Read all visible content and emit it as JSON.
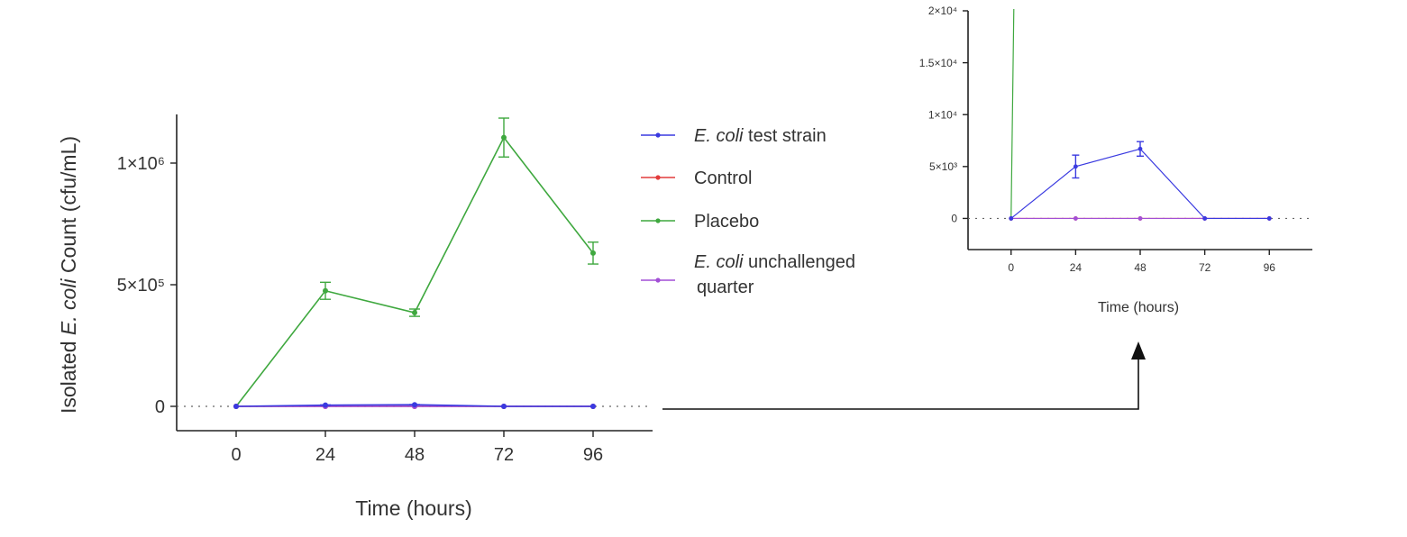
{
  "chart_data": [
    {
      "type": "line",
      "panel": "main",
      "x": [
        0,
        24,
        48,
        72,
        96
      ],
      "xticks": [
        "0",
        "24",
        "48",
        "72",
        "96"
      ],
      "xlabel": "Time (hours)",
      "ylabel_parts": [
        "Isolated ",
        "E. coli",
        " Count (cfu/mL)"
      ],
      "yticks": [
        {
          "v": 0,
          "label": "0"
        },
        {
          "v": 500000,
          "label": "5×10⁵"
        },
        {
          "v": 1000000,
          "label": "1×10⁶"
        }
      ],
      "ylim": [
        -100000,
        1200000
      ],
      "xlim": [
        -16,
        112
      ],
      "zero_line": true,
      "series": [
        {
          "name_italic": "E. coli",
          "name_rest": " test strain",
          "color": "#3a3ae0",
          "values": [
            0,
            5000,
            6700,
            0,
            0
          ],
          "err": [
            0,
            1100,
            700,
            0,
            0
          ]
        },
        {
          "name_italic": "",
          "name_rest": "Control",
          "color": "#e23b3b",
          "values": [
            0,
            0,
            0,
            0,
            0
          ],
          "err": [
            0,
            0,
            0,
            0,
            0
          ]
        },
        {
          "name_italic": "",
          "name_rest": "Placebo",
          "color": "#3fa83f",
          "values": [
            0,
            475000,
            385000,
            1105000,
            630000
          ],
          "err": [
            0,
            35000,
            15000,
            80000,
            45000
          ]
        },
        {
          "name_italic": "E. coli",
          "name_rest": " unchallenged",
          "name_line2": "quarter",
          "color": "#a24fd6",
          "values": [
            0,
            0,
            0,
            0,
            0
          ],
          "err": [
            0,
            0,
            0,
            0,
            0
          ]
        }
      ]
    },
    {
      "type": "line",
      "panel": "inset",
      "x": [
        0,
        24,
        48,
        72,
        96
      ],
      "xticks": [
        "0",
        "24",
        "48",
        "72",
        "96"
      ],
      "xlabel": "Time (hours)",
      "yticks": [
        {
          "v": 0,
          "label": "0"
        },
        {
          "v": 5000,
          "label": "5×10³"
        },
        {
          "v": 10000,
          "label": "1×10⁴"
        },
        {
          "v": 15000,
          "label": "1.5×10⁴"
        },
        {
          "v": 20000,
          "label": "2×10⁴"
        }
      ],
      "ylim": [
        -3000,
        20000
      ],
      "xlim": [
        -16,
        112
      ],
      "zero_line": true
    }
  ]
}
